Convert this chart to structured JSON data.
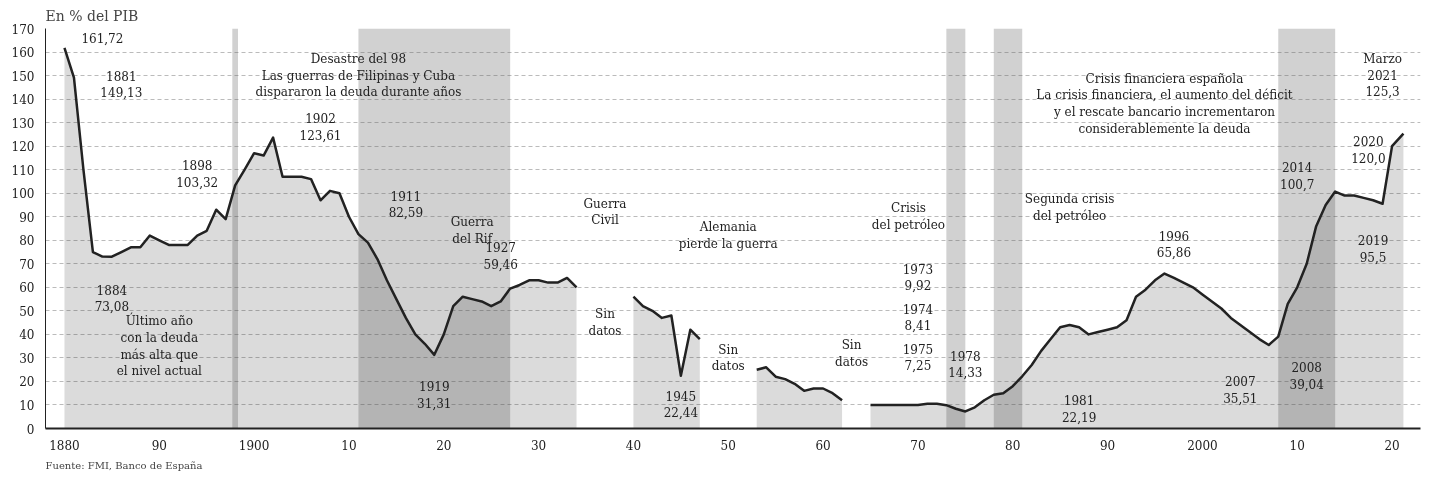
{
  "chart_data": {
    "type": "area",
    "ylabel": "En % del PIB",
    "x": [
      1880,
      1881,
      1882,
      1883,
      1884,
      1885,
      1886,
      1887,
      1888,
      1889,
      1890,
      1891,
      1892,
      1893,
      1894,
      1895,
      1896,
      1897,
      1898,
      1899,
      1900,
      1901,
      1902,
      1903,
      1904,
      1905,
      1906,
      1907,
      1908,
      1909,
      1910,
      1911,
      1912,
      1913,
      1914,
      1915,
      1916,
      1917,
      1918,
      1919,
      1920,
      1921,
      1922,
      1923,
      1924,
      1925,
      1926,
      1927,
      1928,
      1929,
      1930,
      1931,
      1932,
      1933,
      1934,
      1935,
      1936,
      1937,
      1938,
      1939,
      1940,
      1941,
      1942,
      1943,
      1944,
      1945,
      1946,
      1947,
      1948,
      1949,
      1950,
      1951,
      1952,
      1953,
      1954,
      1955,
      1956,
      1957,
      1958,
      1959,
      1960,
      1961,
      1962,
      1963,
      1964,
      1965,
      1966,
      1967,
      1968,
      1969,
      1970,
      1971,
      1972,
      1973,
      1974,
      1975,
      1976,
      1977,
      1978,
      1979,
      1980,
      1981,
      1982,
      1983,
      1984,
      1985,
      1986,
      1987,
      1988,
      1989,
      1990,
      1991,
      1992,
      1993,
      1994,
      1995,
      1996,
      1997,
      1998,
      1999,
      2000,
      2001,
      2002,
      2003,
      2004,
      2005,
      2006,
      2007,
      2008,
      2009,
      2010,
      2011,
      2012,
      2013,
      2014,
      2015,
      2016,
      2017,
      2018,
      2019,
      2020,
      2021.2
    ],
    "series": [
      {
        "color": "#222222",
        "values": [
          161.72,
          149.13,
          110,
          75,
          73.08,
          73,
          75,
          77,
          77,
          82,
          80,
          78,
          78,
          78,
          82,
          84,
          93,
          89,
          103.32,
          110,
          117,
          116,
          123.61,
          107,
          107,
          107,
          106,
          97,
          101,
          100,
          90,
          82.59,
          79,
          72,
          63,
          55,
          47,
          40,
          36,
          31.31,
          40,
          52,
          56,
          55,
          54,
          52,
          54,
          59.46,
          61,
          63,
          63,
          62,
          62,
          64,
          60,
          null,
          null,
          null,
          null,
          null,
          56,
          52,
          50,
          47,
          48,
          22.44,
          42,
          38,
          null,
          null,
          null,
          null,
          null,
          25,
          26,
          22,
          21,
          19,
          16,
          17,
          17,
          15,
          12,
          null,
          null,
          10,
          10,
          10,
          10,
          10,
          10,
          10.5,
          10.5,
          9.92,
          8.41,
          7.25,
          9,
          12,
          14.33,
          15,
          18,
          22.19,
          27,
          33,
          38,
          43,
          44,
          43,
          40,
          41,
          42,
          43,
          46,
          56,
          59,
          63,
          65.86,
          64,
          62,
          60,
          57,
          54,
          51,
          47,
          44,
          41,
          38,
          35.51,
          39.04,
          53,
          60,
          70,
          86,
          95,
          100.7,
          99,
          99,
          98,
          97,
          95.5,
          120.0,
          125.3
        ]
      }
    ],
    "xlim": [
      1878,
      2023
    ],
    "ylim": [
      0,
      170
    ],
    "xticks": [
      1880,
      {
        "value": 1890,
        "label": "90"
      },
      1900,
      {
        "value": 1910,
        "label": "10"
      },
      {
        "value": 1920,
        "label": "20"
      },
      {
        "value": 1930,
        "label": "30"
      },
      {
        "value": 1940,
        "label": "40"
      },
      {
        "value": 1950,
        "label": "50"
      },
      {
        "value": 1960,
        "label": "60"
      },
      {
        "value": 1970,
        "label": "70"
      },
      {
        "value": 1980,
        "label": "80"
      },
      {
        "value": 1990,
        "label": "90"
      },
      2000,
      {
        "value": 2010,
        "label": "10"
      },
      {
        "value": 2020,
        "label": "20"
      }
    ],
    "yticks": [
      0,
      10,
      20,
      30,
      40,
      50,
      60,
      70,
      80,
      90,
      100,
      110,
      120,
      130,
      140,
      150,
      160,
      170
    ],
    "grid": "y",
    "marker": "none",
    "line_style": "solid",
    "bands": [
      {
        "axis": "x",
        "from": 1897.7,
        "to": 1898.3,
        "color": "#666666"
      },
      {
        "axis": "x",
        "from": 1911,
        "to": 1927,
        "color": "#666666"
      },
      {
        "axis": "x",
        "from": 1973,
        "to": 1975,
        "color": "#666666"
      },
      {
        "axis": "x",
        "from": 1978,
        "to": 1981,
        "color": "#666666"
      },
      {
        "axis": "x",
        "from": 2008,
        "to": 2014,
        "color": "#666666"
      }
    ],
    "annotations": [
      "161,72",
      "1881\n149,13",
      "1884\n73,08",
      "Último año\ncon la deuda\nmás alta que\nel nivel actual",
      "1898\n103,32",
      "Desastre del 98\nLas guerras de Filipinas y Cuba\ndispararon la deuda durante años",
      "1902\n123,61",
      "1911\n82,59",
      "Guerra\ndel Rif",
      "1919\n31,31",
      "1927\n59,46",
      "Guerra\nCivil",
      "Sin\ndatos",
      "Alemania\npierde la guerra",
      "1945\n22,44",
      "Sin\ndatos",
      "Sin\ndatos",
      "Crisis\ndel petróleo",
      "1973\n9,92",
      "1974\n8,41",
      "1975\n7,25",
      "1978\n14,33",
      "Segunda crisis\ndel petróleo",
      "1981\n22,19",
      "1996\n65,86",
      "Crisis financiera española\nLa crisis financiera, el aumento del déficit\ny el rescate bancario incrementaron\nconsiderablemente la deuda",
      "2007\n35,51",
      "2008\n39,04",
      "2014\n100,7",
      "2019\n95,5",
      "2020\n120,0",
      "Marzo\n2021\n125,3",
      "Fuente: FMI, Banco de España"
    ]
  }
}
